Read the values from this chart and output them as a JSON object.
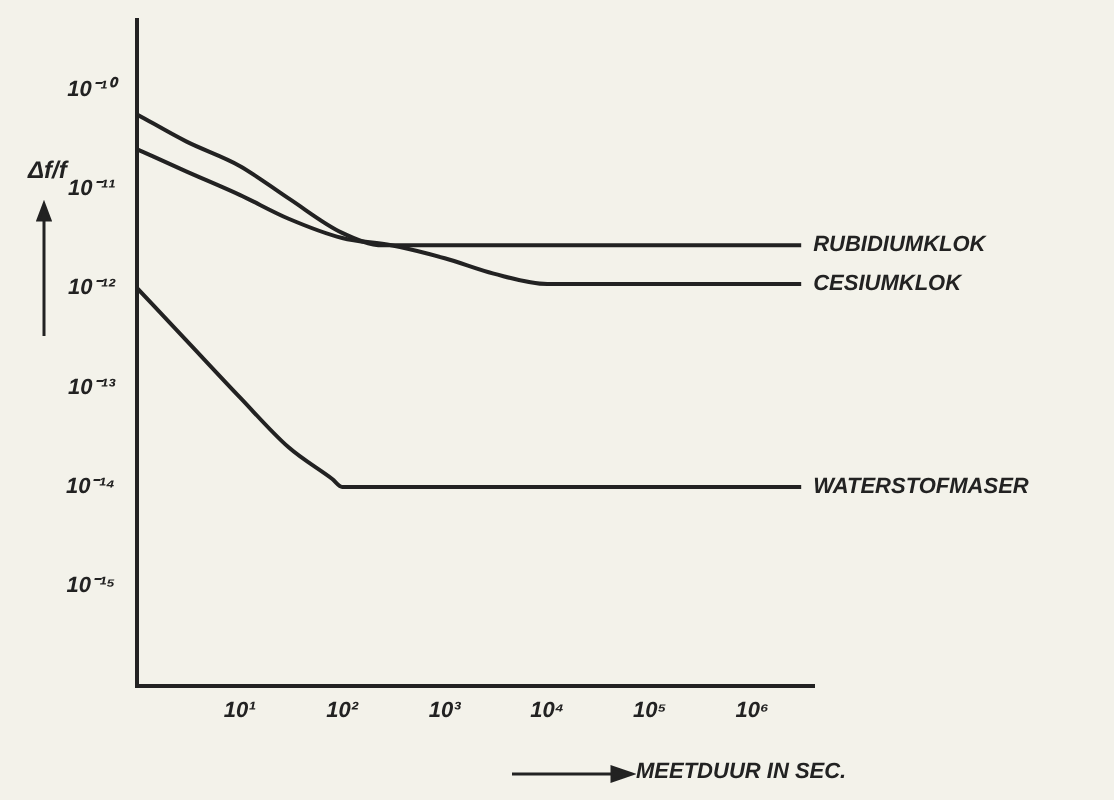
{
  "chart_data": {
    "type": "line",
    "ylabel": "Δf/f",
    "xlabel": "MEETDUUR IN SEC.",
    "log": "xy",
    "xlim": [
      1,
      4000000
    ],
    "ylim": [
      1e-16,
      5e-10
    ],
    "xticks": [
      {
        "value": 10,
        "label": "10¹"
      },
      {
        "value": 100,
        "label": "10²"
      },
      {
        "value": 1000,
        "label": "10³"
      },
      {
        "value": 10000,
        "label": "10⁴"
      },
      {
        "value": 100000,
        "label": "10⁵"
      },
      {
        "value": 1000000,
        "label": "10⁶"
      }
    ],
    "yticks": [
      {
        "value": 1e-10,
        "label": "10⁻¹⁰"
      },
      {
        "value": 1e-11,
        "label": "10⁻¹¹"
      },
      {
        "value": 1e-12,
        "label": "10⁻¹²"
      },
      {
        "value": 1e-13,
        "label": "10⁻¹³"
      },
      {
        "value": 1e-14,
        "label": "10⁻¹⁴"
      },
      {
        "value": 1e-15,
        "label": "10⁻¹⁵"
      }
    ],
    "grid": false,
    "legend": false,
    "marker": "none",
    "line_style": "solid",
    "series": [
      {
        "name": "RUBIDIUMKLOK",
        "color": "#222222",
        "x": [
          1,
          3,
          10,
          30,
          100,
          250,
          1000,
          10000,
          100000,
          3000000
        ],
        "values": [
          5.6e-11,
          3e-11,
          1.7e-11,
          8e-12,
          3.6e-12,
          2.7e-12,
          2.7e-12,
          2.7e-12,
          2.7e-12,
          2.7e-12
        ]
      },
      {
        "name": "CESIUMKLOK",
        "color": "#222222",
        "x": [
          1,
          3,
          10,
          30,
          100,
          300,
          1000,
          3000,
          10000,
          100000,
          3000000
        ],
        "values": [
          2.5e-11,
          1.5e-11,
          8.7e-12,
          5e-12,
          3.2e-12,
          2.7e-12,
          2e-12,
          1.4e-12,
          1.1e-12,
          1.1e-12,
          1.1e-12
        ]
      },
      {
        "name": "WATERSTOFMASER",
        "color": "#222222",
        "x": [
          1,
          3,
          10,
          30,
          80,
          100,
          1000,
          10000,
          100000,
          3000000
        ],
        "values": [
          1e-12,
          3e-13,
          8e-14,
          2.5e-14,
          1.2e-14,
          1e-14,
          1e-14,
          1e-14,
          1e-14,
          1e-14
        ]
      }
    ]
  }
}
